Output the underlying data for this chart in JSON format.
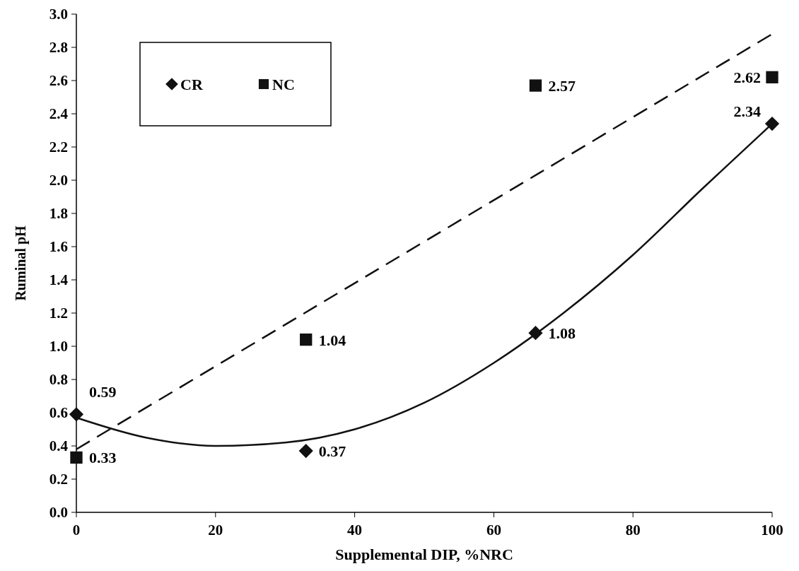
{
  "chart_data": {
    "type": "scatter",
    "xlabel": "Supplemental DIP, %NRC",
    "ylabel": "Ruminal pH",
    "xlim": [
      0,
      100
    ],
    "xticks": [
      0,
      20,
      40,
      60,
      80,
      100
    ],
    "ylim": [
      0,
      3
    ],
    "yticks": [
      {
        "value": 0,
        "label": "0.0"
      },
      {
        "value": 0.2,
        "label": "0.2"
      },
      {
        "value": 0.4,
        "label": "0.4"
      },
      {
        "value": 0.6,
        "label": "0.6"
      },
      {
        "value": 0.8,
        "label": "0.8"
      },
      {
        "value": 1,
        "label": "1.0"
      },
      {
        "value": 1.2,
        "label": "1.2"
      },
      {
        "value": 1.4,
        "label": "1.4"
      },
      {
        "value": 1.6,
        "label": "1.6"
      },
      {
        "value": 1.8,
        "label": "1.8"
      },
      {
        "value": 2,
        "label": "2.0"
      },
      {
        "value": 2.2,
        "label": "2.2"
      },
      {
        "value": 2.4,
        "label": "2.4"
      },
      {
        "value": 2.6,
        "label": "2.6"
      },
      {
        "value": 2.8,
        "label": "2.8"
      },
      {
        "value": 3,
        "label": "3.0"
      }
    ],
    "grid": false,
    "legend": "top left",
    "series": [
      {
        "name": "CR",
        "marker": "diamond",
        "color": "#111111",
        "x": [
          0,
          33,
          66,
          100
        ],
        "values": [
          0.59,
          0.37,
          1.08,
          2.34
        ],
        "value_labels": [
          "0.59",
          "0.37",
          "1.08",
          "2.34"
        ]
      },
      {
        "name": "NC",
        "marker": "square",
        "color": "#111111",
        "x": [
          0,
          33,
          66,
          100
        ],
        "values": [
          0.33,
          1.04,
          2.57,
          2.62
        ],
        "value_labels": [
          "0.33",
          "1.04",
          "2.57",
          "2.62"
        ]
      },
      {
        "type": "line",
        "line_style": "solid",
        "color": "#111111",
        "x": [
          0,
          10,
          20,
          30,
          40,
          50,
          60,
          70,
          80,
          90,
          100
        ],
        "values": [
          0.57,
          0.45,
          0.4,
          0.42,
          0.5,
          0.66,
          0.9,
          1.2,
          1.55,
          1.95,
          2.34
        ]
      },
      {
        "type": "line",
        "line_style": "dashed",
        "color": "#111111",
        "x": [
          0,
          100
        ],
        "values": [
          0.38,
          2.88
        ]
      }
    ]
  }
}
